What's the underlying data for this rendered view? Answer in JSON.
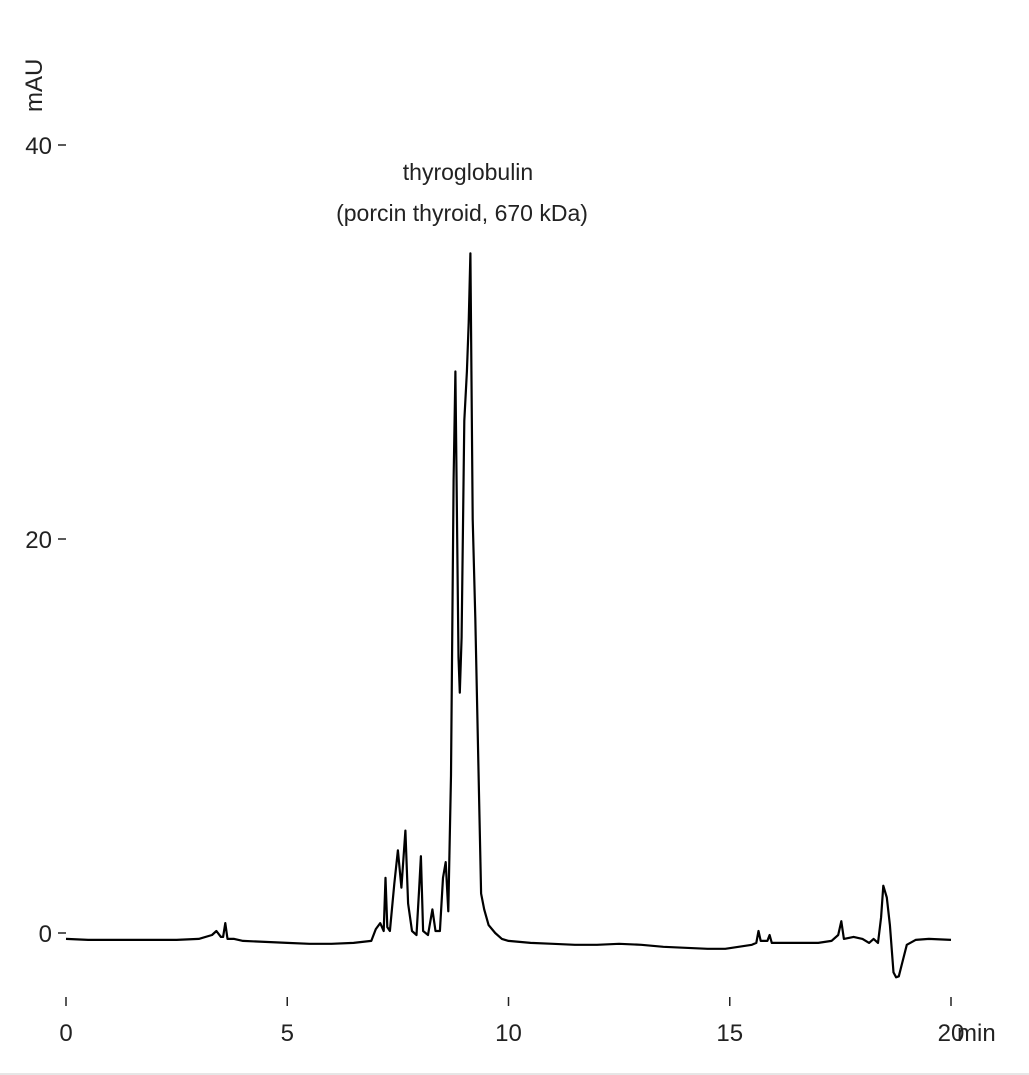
{
  "chart_data": {
    "type": "line",
    "title": "",
    "xlabel": "min",
    "ylabel": "mAU",
    "xlim": [
      0,
      20
    ],
    "ylim": [
      -2,
      40
    ],
    "x_ticks": [
      "0",
      "5",
      "10",
      "15",
      "20"
    ],
    "y_ticks": [
      "0",
      "20",
      "40"
    ],
    "grid": false,
    "annotation": {
      "line1": "thyroglobulin",
      "line2": "(porcin thyroid, 670 kDa)"
    },
    "series": [
      {
        "color": "#000000",
        "points": [
          [
            0.0,
            -0.3
          ],
          [
            0.5,
            -0.35
          ],
          [
            1.0,
            -0.35
          ],
          [
            1.5,
            -0.35
          ],
          [
            2.0,
            -0.35
          ],
          [
            2.5,
            -0.35
          ],
          [
            3.0,
            -0.3
          ],
          [
            3.3,
            -0.1
          ],
          [
            3.4,
            0.1
          ],
          [
            3.5,
            -0.2
          ],
          [
            3.55,
            -0.2
          ],
          [
            3.6,
            0.5
          ],
          [
            3.65,
            -0.3
          ],
          [
            3.8,
            -0.3
          ],
          [
            4.0,
            -0.4
          ],
          [
            4.5,
            -0.45
          ],
          [
            5.0,
            -0.5
          ],
          [
            5.5,
            -0.55
          ],
          [
            6.0,
            -0.55
          ],
          [
            6.5,
            -0.5
          ],
          [
            6.9,
            -0.4
          ],
          [
            7.0,
            0.2
          ],
          [
            7.1,
            0.5
          ],
          [
            7.18,
            0.1
          ],
          [
            7.22,
            2.8
          ],
          [
            7.26,
            0.3
          ],
          [
            7.32,
            0.1
          ],
          [
            7.42,
            2.5
          ],
          [
            7.5,
            4.2
          ],
          [
            7.58,
            2.3
          ],
          [
            7.67,
            5.2
          ],
          [
            7.73,
            1.5
          ],
          [
            7.82,
            0.1
          ],
          [
            7.92,
            -0.1
          ],
          [
            7.98,
            2.2
          ],
          [
            8.02,
            3.9
          ],
          [
            8.07,
            0.1
          ],
          [
            8.18,
            -0.1
          ],
          [
            8.28,
            1.2
          ],
          [
            8.35,
            0.1
          ],
          [
            8.45,
            0.1
          ],
          [
            8.52,
            2.8
          ],
          [
            8.58,
            3.6
          ],
          [
            8.64,
            1.1
          ],
          [
            8.7,
            8.0
          ],
          [
            8.76,
            23.0
          ],
          [
            8.8,
            28.5
          ],
          [
            8.84,
            20.0
          ],
          [
            8.87,
            14.0
          ],
          [
            8.9,
            12.2
          ],
          [
            8.94,
            15.0
          ],
          [
            9.0,
            26.0
          ],
          [
            9.06,
            28.5
          ],
          [
            9.1,
            31.0
          ],
          [
            9.14,
            34.5
          ],
          [
            9.19,
            21.0
          ],
          [
            9.25,
            16.0
          ],
          [
            9.32,
            8.5
          ],
          [
            9.38,
            2.0
          ],
          [
            9.45,
            1.2
          ],
          [
            9.55,
            0.4
          ],
          [
            9.7,
            0.0
          ],
          [
            9.85,
            -0.3
          ],
          [
            10.0,
            -0.4
          ],
          [
            10.5,
            -0.5
          ],
          [
            11.0,
            -0.55
          ],
          [
            11.5,
            -0.6
          ],
          [
            12.0,
            -0.6
          ],
          [
            12.5,
            -0.55
          ],
          [
            13.0,
            -0.6
          ],
          [
            13.5,
            -0.7
          ],
          [
            14.0,
            -0.75
          ],
          [
            14.5,
            -0.8
          ],
          [
            14.9,
            -0.8
          ],
          [
            15.2,
            -0.7
          ],
          [
            15.5,
            -0.6
          ],
          [
            15.6,
            -0.5
          ],
          [
            15.65,
            0.1
          ],
          [
            15.7,
            -0.4
          ],
          [
            15.85,
            -0.4
          ],
          [
            15.9,
            -0.1
          ],
          [
            15.95,
            -0.5
          ],
          [
            16.1,
            -0.5
          ],
          [
            16.5,
            -0.5
          ],
          [
            17.0,
            -0.5
          ],
          [
            17.3,
            -0.4
          ],
          [
            17.45,
            -0.1
          ],
          [
            17.52,
            0.6
          ],
          [
            17.58,
            -0.3
          ],
          [
            17.8,
            -0.2
          ],
          [
            18.0,
            -0.3
          ],
          [
            18.15,
            -0.5
          ],
          [
            18.25,
            -0.3
          ],
          [
            18.35,
            -0.5
          ],
          [
            18.42,
            0.8
          ],
          [
            18.47,
            2.4
          ],
          [
            18.55,
            1.8
          ],
          [
            18.62,
            0.4
          ],
          [
            18.7,
            -2.0
          ],
          [
            18.76,
            -2.25
          ],
          [
            18.82,
            -2.2
          ],
          [
            18.9,
            -1.5
          ],
          [
            19.0,
            -0.6
          ],
          [
            19.2,
            -0.35
          ],
          [
            19.5,
            -0.3
          ],
          [
            20.0,
            -0.35
          ]
        ]
      }
    ]
  }
}
